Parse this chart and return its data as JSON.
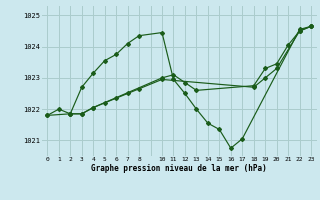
{
  "bg_color": "#cce8ee",
  "grid_color": "#aacccc",
  "line_color": "#1a5c1a",
  "title": "Graphe pression niveau de la mer (hPa)",
  "ylabel_vals": [
    1021,
    1022,
    1023,
    1024,
    1025
  ],
  "xlim": [
    -0.5,
    23.5
  ],
  "ylim": [
    1020.5,
    1025.3
  ],
  "xtick_labels": [
    "0",
    "1",
    "2",
    "3",
    "4",
    "5",
    "6",
    "7",
    "8",
    "",
    "10",
    "11",
    "12",
    "13",
    "14",
    "15",
    "16",
    "17",
    "18",
    "19",
    "20",
    "21",
    "22",
    "23"
  ],
  "series": [
    {
      "x": [
        0,
        1,
        2,
        3,
        4,
        5,
        6,
        7,
        8,
        10,
        11,
        12,
        13,
        14,
        15,
        16,
        17,
        22,
        23
      ],
      "y": [
        1021.8,
        1022.0,
        1021.85,
        1022.7,
        1023.15,
        1023.55,
        1023.75,
        1024.1,
        1024.35,
        1024.45,
        1022.95,
        1022.5,
        1022.0,
        1021.55,
        1021.35,
        1020.75,
        1021.05,
        1024.55,
        1024.65
      ]
    },
    {
      "x": [
        0,
        2,
        3,
        4,
        10,
        11,
        12,
        13,
        18,
        19,
        20,
        21,
        22,
        23
      ],
      "y": [
        1021.8,
        1021.85,
        1021.85,
        1022.05,
        1023.0,
        1023.1,
        1022.85,
        1022.6,
        1022.75,
        1023.3,
        1023.45,
        1024.05,
        1024.5,
        1024.65
      ]
    },
    {
      "x": [
        2,
        3,
        4,
        5,
        6,
        7,
        8,
        10,
        18,
        19,
        20,
        22,
        23
      ],
      "y": [
        1021.85,
        1021.85,
        1022.05,
        1022.2,
        1022.35,
        1022.5,
        1022.65,
        1022.95,
        1022.7,
        1023.0,
        1023.3,
        1024.5,
        1024.65
      ]
    }
  ]
}
